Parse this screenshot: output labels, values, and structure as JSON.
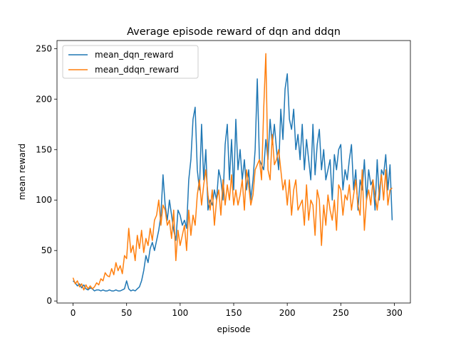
{
  "chart_data": {
    "type": "line",
    "title": "Average episode reward of dqn and ddqn",
    "xlabel": "episode",
    "ylabel": "mean reward",
    "xlim": [
      -15,
      315
    ],
    "ylim": [
      -2,
      258
    ],
    "xticks": [
      0,
      50,
      100,
      150,
      200,
      250,
      300
    ],
    "yticks": [
      0,
      50,
      100,
      150,
      200,
      250
    ],
    "legend_position": "upper-left",
    "grid": false,
    "series": [
      {
        "name": "mean_dqn_reward",
        "color": "#1f77b4",
        "x": [
          0,
          2,
          4,
          6,
          8,
          10,
          12,
          14,
          16,
          18,
          20,
          22,
          24,
          26,
          28,
          30,
          32,
          34,
          36,
          38,
          40,
          42,
          44,
          46,
          48,
          50,
          52,
          54,
          56,
          58,
          60,
          62,
          64,
          66,
          68,
          70,
          72,
          74,
          76,
          78,
          80,
          82,
          84,
          86,
          88,
          90,
          92,
          94,
          96,
          98,
          100,
          102,
          104,
          106,
          108,
          110,
          112,
          114,
          116,
          118,
          120,
          122,
          124,
          126,
          128,
          130,
          132,
          134,
          136,
          138,
          140,
          142,
          144,
          146,
          148,
          150,
          152,
          154,
          156,
          158,
          160,
          162,
          164,
          166,
          168,
          170,
          172,
          174,
          176,
          178,
          180,
          182,
          184,
          186,
          188,
          190,
          192,
          194,
          196,
          198,
          200,
          202,
          204,
          206,
          208,
          210,
          212,
          214,
          216,
          218,
          220,
          222,
          224,
          226,
          228,
          230,
          232,
          234,
          236,
          238,
          240,
          242,
          244,
          246,
          248,
          250,
          252,
          254,
          256,
          258,
          260,
          262,
          264,
          266,
          268,
          270,
          272,
          274,
          276,
          278,
          280,
          282,
          284,
          286,
          288,
          290,
          292,
          294,
          296,
          298
        ],
        "y": [
          20,
          18,
          15,
          17,
          13,
          16,
          12,
          11,
          13,
          12,
          10,
          11,
          11,
          10,
          11,
          10,
          10,
          11,
          10,
          10,
          11,
          10,
          10,
          11,
          12,
          20,
          12,
          10,
          11,
          10,
          12,
          14,
          20,
          30,
          45,
          38,
          52,
          58,
          50,
          60,
          70,
          85,
          125,
          95,
          80,
          100,
          85,
          70,
          60,
          90,
          85,
          75,
          80,
          72,
          120,
          140,
          180,
          192,
          130,
          110,
          175,
          120,
          150,
          90,
          100,
          95,
          110,
          100,
          130,
          120,
          100,
          155,
          175,
          120,
          160,
          110,
          180,
          130,
          150,
          120,
          140,
          110,
          130,
          100,
          120,
          150,
          220,
          140,
          135,
          130,
          160,
          140,
          180,
          155,
          175,
          150,
          130,
          190,
          160,
          210,
          225,
          180,
          170,
          190,
          150,
          165,
          140,
          175,
          130,
          160,
          140,
          120,
          175,
          125,
          155,
          170,
          130,
          150,
          120,
          130,
          140,
          100,
          145,
          130,
          150,
          155,
          110,
          130,
          120,
          140,
          155,
          110,
          130,
          90,
          120,
          110,
          140,
          100,
          130,
          115,
          120,
          90,
          140,
          100,
          130,
          125,
          145,
          110,
          135,
          80
        ]
      },
      {
        "name": "mean_ddqn_reward",
        "color": "#ff7f0e",
        "x": [
          0,
          2,
          4,
          6,
          8,
          10,
          12,
          14,
          16,
          18,
          20,
          22,
          24,
          26,
          28,
          30,
          32,
          34,
          36,
          38,
          40,
          42,
          44,
          46,
          48,
          50,
          52,
          54,
          56,
          58,
          60,
          62,
          64,
          66,
          68,
          70,
          72,
          74,
          76,
          78,
          80,
          82,
          84,
          86,
          88,
          90,
          92,
          94,
          96,
          98,
          100,
          102,
          104,
          106,
          108,
          110,
          112,
          114,
          116,
          118,
          120,
          122,
          124,
          126,
          128,
          130,
          132,
          134,
          136,
          138,
          140,
          142,
          144,
          146,
          148,
          150,
          152,
          154,
          156,
          158,
          160,
          162,
          164,
          166,
          168,
          170,
          172,
          174,
          176,
          178,
          180,
          182,
          184,
          186,
          188,
          190,
          192,
          194,
          196,
          198,
          200,
          202,
          204,
          206,
          208,
          210,
          212,
          214,
          216,
          218,
          220,
          222,
          224,
          226,
          228,
          230,
          232,
          234,
          236,
          238,
          240,
          242,
          244,
          246,
          248,
          250,
          252,
          254,
          256,
          258,
          260,
          262,
          264,
          266,
          268,
          270,
          272,
          274,
          276,
          278,
          280,
          282,
          284,
          286,
          288,
          290,
          292,
          294,
          296,
          298
        ],
        "y": [
          23,
          17,
          20,
          14,
          17,
          11,
          16,
          12,
          15,
          12,
          14,
          18,
          16,
          22,
          20,
          28,
          25,
          24,
          32,
          26,
          38,
          30,
          35,
          27,
          45,
          42,
          72,
          48,
          55,
          40,
          65,
          52,
          70,
          48,
          62,
          55,
          72,
          60,
          80,
          85,
          100,
          75,
          95,
          90,
          75,
          80,
          62,
          90,
          40,
          70,
          55,
          65,
          75,
          50,
          90,
          65,
          85,
          75,
          105,
          120,
          95,
          115,
          130,
          105,
          90,
          110,
          75,
          100,
          110,
          85,
          120,
          95,
          115,
          100,
          125,
          95,
          110,
          95,
          105,
          120,
          90,
          130,
          115,
          95,
          105,
          130,
          135,
          140,
          120,
          190,
          245,
          130,
          120,
          165,
          135,
          140,
          150,
          130,
          110,
          120,
          95,
          120,
          85,
          110,
          120,
          90,
          95,
          100,
          75,
          115,
          80,
          100,
          95,
          65,
          110,
          100,
          55,
          95,
          75,
          105,
          90,
          80,
          100,
          70,
          115,
          110,
          85,
          105,
          100,
          115,
          90,
          105,
          120,
          95,
          85,
          130,
          70,
          100,
          110,
          95,
          120,
          105,
          90,
          110,
          125,
          100,
          130,
          95,
          110,
          112
        ]
      }
    ]
  }
}
